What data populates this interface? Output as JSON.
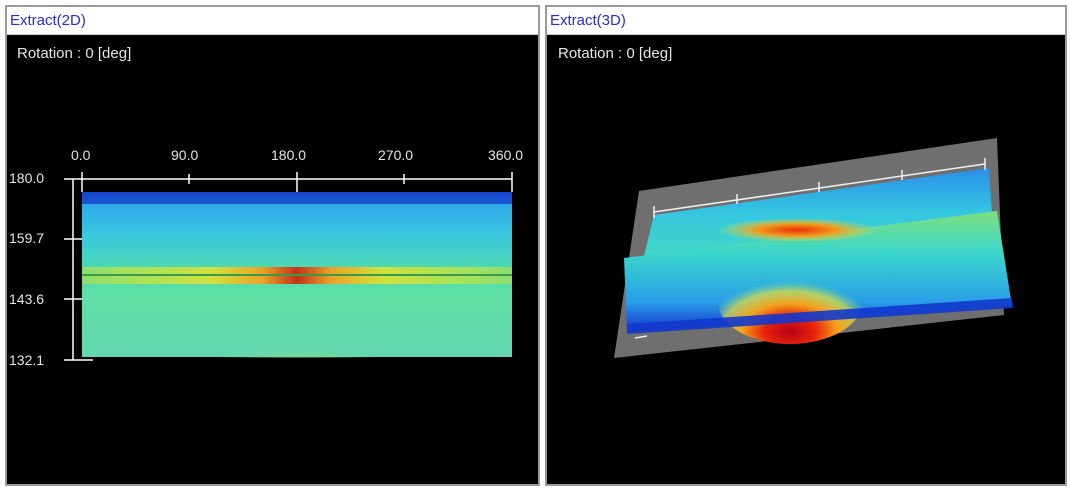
{
  "panel_2d": {
    "title": "Extract(2D)",
    "rotation_text": "Rotation : 0 [deg]",
    "x_ticks": [
      "0.0",
      "90.0",
      "180.0",
      "270.0",
      "360.0"
    ],
    "y_ticks": [
      "180.0",
      "159.7",
      "143.6",
      "132.1"
    ]
  },
  "panel_3d": {
    "title": "Extract(3D)",
    "rotation_text": "Rotation : 0 [deg]"
  },
  "colors": {
    "title_text": "#2b2bd6",
    "background": "#000000",
    "hot": "#d21e00",
    "mid": "#f0e12a",
    "cool": "#36c8e6",
    "cold": "#0a2ad8"
  }
}
